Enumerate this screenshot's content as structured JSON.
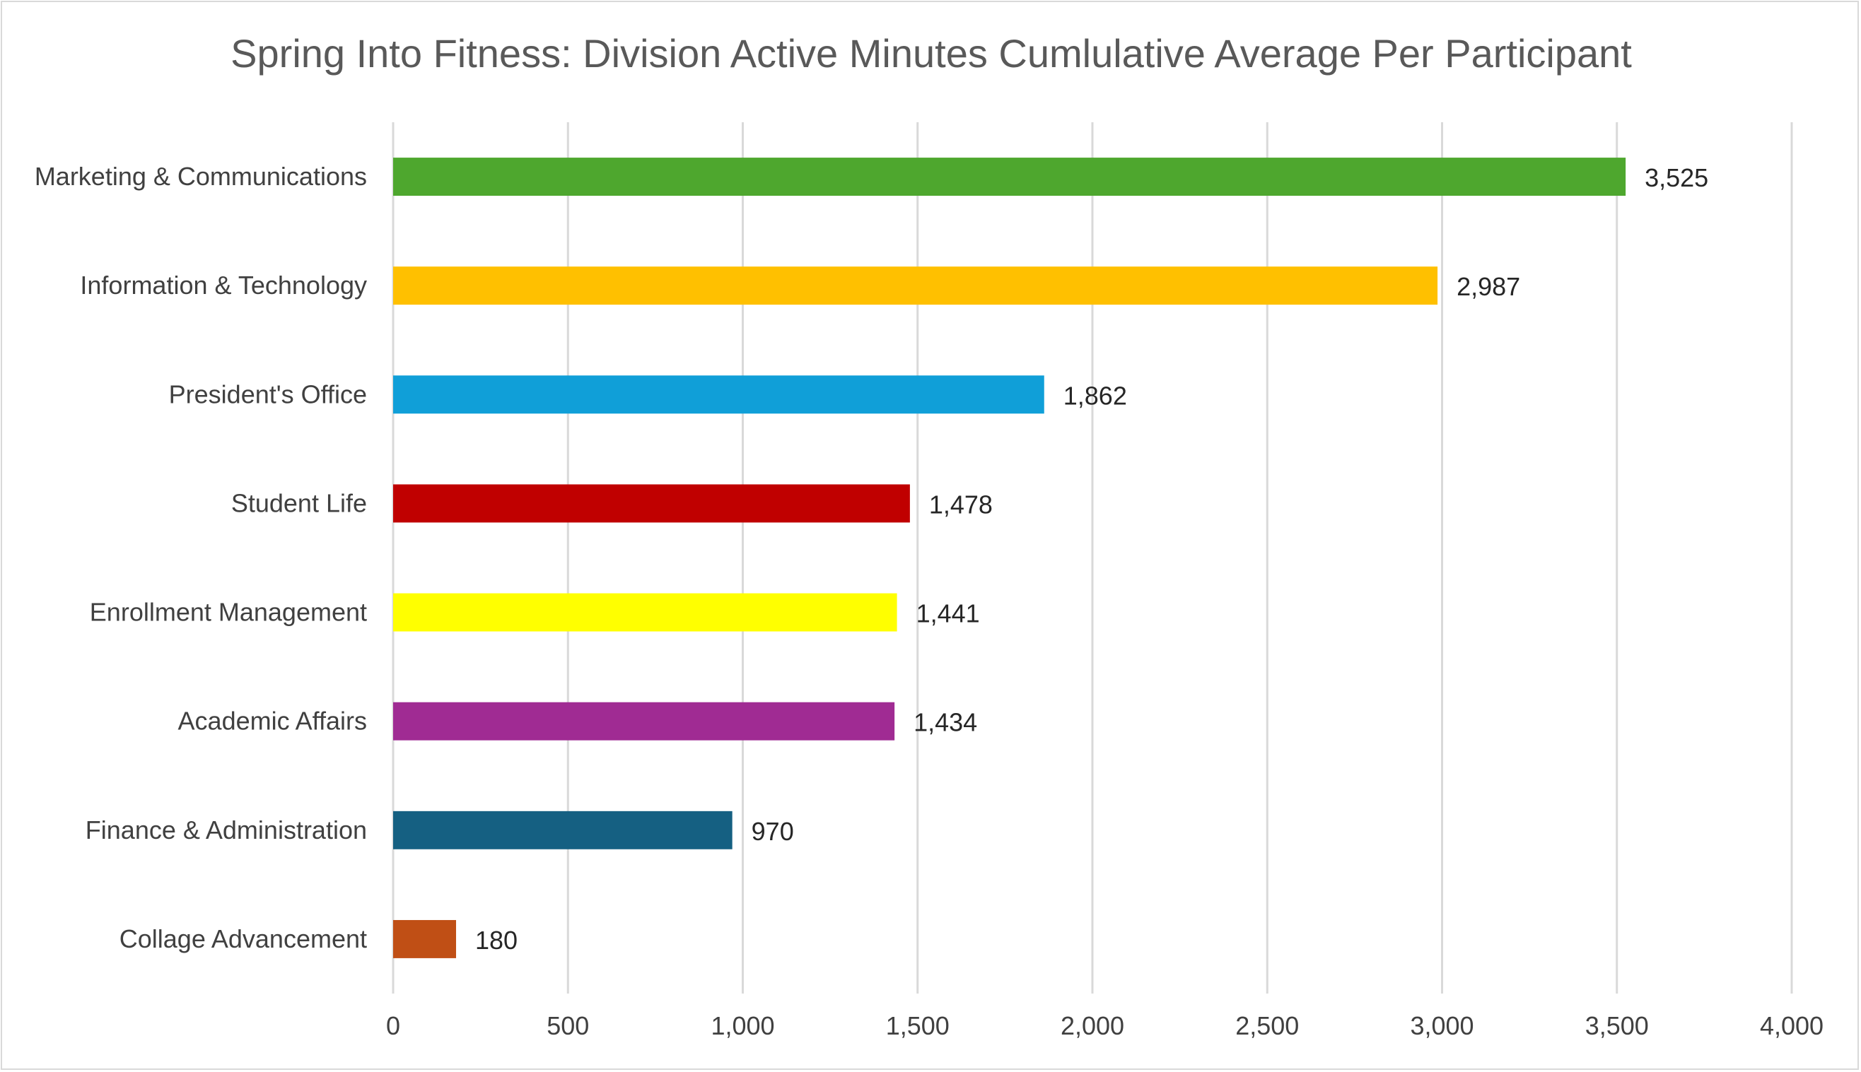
{
  "chart_data": {
    "type": "bar",
    "orientation": "horizontal",
    "title": "Spring Into Fitness: Division Active Minutes Cumlulative Average Per Participant",
    "xlabel": "",
    "ylabel": "",
    "xlim": [
      0,
      4000
    ],
    "x_ticks": [
      0,
      500,
      1000,
      1500,
      2000,
      2500,
      3000,
      3500,
      4000
    ],
    "x_tick_labels": [
      "0",
      "500",
      "1,000",
      "1,500",
      "2,000",
      "2,500",
      "3,000",
      "3,500",
      "4,000"
    ],
    "grid": "vertical",
    "legend": "none",
    "categories": [
      "Marketing & Communications",
      "Information & Technology",
      "President's Office",
      "Student Life",
      "Enrollment Management",
      "Academic Affairs",
      "Finance & Administration",
      "Collage Advancement"
    ],
    "values": [
      3525,
      2987,
      1862,
      1478,
      1441,
      1434,
      970,
      180
    ],
    "data_labels": [
      "3,525",
      "2,987",
      "1,862",
      "1,478",
      "1,441",
      "1,434",
      "970",
      "180"
    ],
    "colors": [
      "#4EA72E",
      "#FFC000",
      "#109FD8",
      "#C00000",
      "#FFFF00",
      "#A02B93",
      "#156082",
      "#C04F15"
    ]
  }
}
